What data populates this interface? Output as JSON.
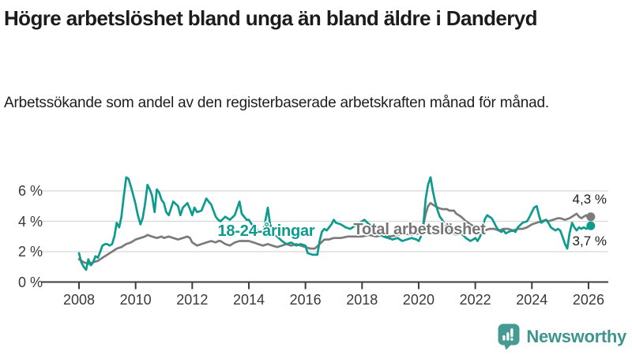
{
  "header": {
    "title": "Högre arbetslöshet bland unga än bland äldre i Danderyd",
    "subtitle": "Arbetssökande som andel av den registerbaserade arbetskraften månad för månad."
  },
  "footer": {
    "brand": "Newsworthy"
  },
  "colors": {
    "youth_line": "#0d9b8e",
    "total_line": "#7b7b7b",
    "grid": "#d8d8d8",
    "axis": "#3c3c3c",
    "logo_teal": "#459b94",
    "logo_text": "#3f948e"
  },
  "chart_data": {
    "type": "line",
    "title": "Högre arbetslöshet bland unga än bland äldre i Danderyd",
    "xlabel": "",
    "ylabel": "",
    "grid": "horizontal",
    "xlim": [
      2006.7,
      2026.7
    ],
    "ylim": [
      0,
      7.2
    ],
    "x_ticks": {
      "values": [
        2008,
        2010,
        2012,
        2014,
        2016,
        2018,
        2020,
        2022,
        2024,
        2026
      ],
      "labels": [
        "2008",
        "2010",
        "2012",
        "2014",
        "2016",
        "2018",
        "2020",
        "2022",
        "2024",
        "2026"
      ]
    },
    "y_ticks": {
      "values": [
        6,
        4,
        2,
        0
      ],
      "labels": [
        "6 %",
        "4 %",
        "2 %",
        "0 %"
      ]
    },
    "series": [
      {
        "name": "18-24-åringar",
        "color": "#0d9b8e",
        "end_label": "3,7 %",
        "end_value": 3.7,
        "points": [
          [
            2008.0,
            1.9
          ],
          [
            2008.08,
            1.3
          ],
          [
            2008.17,
            1.0
          ],
          [
            2008.25,
            0.8
          ],
          [
            2008.33,
            1.5
          ],
          [
            2008.42,
            1.1
          ],
          [
            2008.5,
            1.3
          ],
          [
            2008.58,
            1.7
          ],
          [
            2008.67,
            1.6
          ],
          [
            2008.75,
            2.0
          ],
          [
            2008.83,
            2.4
          ],
          [
            2008.92,
            2.5
          ],
          [
            2009.0,
            2.5
          ],
          [
            2009.08,
            2.4
          ],
          [
            2009.17,
            2.5
          ],
          [
            2009.25,
            3.0
          ],
          [
            2009.33,
            3.9
          ],
          [
            2009.42,
            3.6
          ],
          [
            2009.5,
            4.3
          ],
          [
            2009.58,
            5.6
          ],
          [
            2009.67,
            6.9
          ],
          [
            2009.75,
            6.8
          ],
          [
            2009.83,
            6.3
          ],
          [
            2009.92,
            5.7
          ],
          [
            2010.0,
            5.1
          ],
          [
            2010.08,
            4.4
          ],
          [
            2010.17,
            3.8
          ],
          [
            2010.25,
            4.2
          ],
          [
            2010.33,
            5.1
          ],
          [
            2010.42,
            6.4
          ],
          [
            2010.5,
            6.1
          ],
          [
            2010.58,
            5.7
          ],
          [
            2010.67,
            4.6
          ],
          [
            2010.75,
            6.1
          ],
          [
            2010.83,
            5.9
          ],
          [
            2010.92,
            5.4
          ],
          [
            2011.0,
            5.2
          ],
          [
            2011.08,
            4.6
          ],
          [
            2011.17,
            4.4
          ],
          [
            2011.33,
            5.3
          ],
          [
            2011.5,
            5.0
          ],
          [
            2011.58,
            4.4
          ],
          [
            2011.67,
            4.9
          ],
          [
            2011.83,
            5.2
          ],
          [
            2011.92,
            4.8
          ],
          [
            2012.0,
            4.4
          ],
          [
            2012.08,
            4.9
          ],
          [
            2012.17,
            4.6
          ],
          [
            2012.33,
            4.7
          ],
          [
            2012.5,
            5.5
          ],
          [
            2012.58,
            5.3
          ],
          [
            2012.67,
            5.1
          ],
          [
            2012.83,
            4.3
          ],
          [
            2012.92,
            4.1
          ],
          [
            2013.0,
            4.0
          ],
          [
            2013.17,
            4.3
          ],
          [
            2013.33,
            4.1
          ],
          [
            2013.5,
            4.4
          ],
          [
            2013.67,
            5.3
          ],
          [
            2013.75,
            4.5
          ],
          [
            2013.92,
            4.1
          ],
          [
            2014.0,
            4.1
          ],
          [
            2014.17,
            3.6
          ],
          [
            2014.33,
            3.4
          ],
          [
            2014.5,
            3.2
          ],
          [
            2014.67,
            4.9
          ],
          [
            2014.75,
            3.8
          ],
          [
            2014.92,
            3.1
          ],
          [
            2015.0,
            3.0
          ],
          [
            2015.17,
            2.7
          ],
          [
            2015.33,
            2.5
          ],
          [
            2015.5,
            2.6
          ],
          [
            2015.67,
            2.4
          ],
          [
            2015.83,
            2.5
          ],
          [
            2016.0,
            2.4
          ],
          [
            2016.08,
            1.9
          ],
          [
            2016.25,
            1.8
          ],
          [
            2016.42,
            1.8
          ],
          [
            2016.5,
            2.7
          ],
          [
            2016.58,
            3.3
          ],
          [
            2016.67,
            3.5
          ],
          [
            2016.75,
            3.4
          ],
          [
            2016.92,
            3.8
          ],
          [
            2017.0,
            4.1
          ],
          [
            2017.08,
            3.9
          ],
          [
            2017.25,
            3.8
          ],
          [
            2017.42,
            3.6
          ],
          [
            2017.58,
            3.5
          ],
          [
            2017.75,
            3.7
          ],
          [
            2017.92,
            3.9
          ],
          [
            2018.08,
            4.1
          ],
          [
            2018.25,
            3.8
          ],
          [
            2018.42,
            3.5
          ],
          [
            2018.58,
            3.2
          ],
          [
            2018.75,
            3.0
          ],
          [
            2018.92,
            2.9
          ],
          [
            2019.08,
            2.8
          ],
          [
            2019.25,
            2.9
          ],
          [
            2019.42,
            2.7
          ],
          [
            2019.58,
            2.8
          ],
          [
            2019.75,
            2.9
          ],
          [
            2019.92,
            2.8
          ],
          [
            2020.0,
            2.7
          ],
          [
            2020.08,
            3.0
          ],
          [
            2020.17,
            3.9
          ],
          [
            2020.25,
            5.5
          ],
          [
            2020.33,
            6.4
          ],
          [
            2020.42,
            6.9
          ],
          [
            2020.5,
            6.0
          ],
          [
            2020.58,
            5.3
          ],
          [
            2020.67,
            4.7
          ],
          [
            2020.75,
            4.3
          ],
          [
            2020.83,
            4.1
          ],
          [
            2020.92,
            3.8
          ],
          [
            2021.0,
            3.5
          ],
          [
            2021.17,
            3.3
          ],
          [
            2021.33,
            3.1
          ],
          [
            2021.5,
            3.2
          ],
          [
            2021.67,
            2.9
          ],
          [
            2021.83,
            2.7
          ],
          [
            2021.92,
            2.8
          ],
          [
            2022.0,
            2.9
          ],
          [
            2022.08,
            2.7
          ],
          [
            2022.17,
            3.0
          ],
          [
            2022.25,
            3.4
          ],
          [
            2022.33,
            4.1
          ],
          [
            2022.42,
            4.4
          ],
          [
            2022.5,
            4.3
          ],
          [
            2022.58,
            4.2
          ],
          [
            2022.67,
            3.9
          ],
          [
            2022.75,
            3.6
          ],
          [
            2022.83,
            3.4
          ],
          [
            2022.92,
            3.3
          ],
          [
            2023.0,
            3.4
          ],
          [
            2023.08,
            3.2
          ],
          [
            2023.17,
            3.3
          ],
          [
            2023.33,
            3.4
          ],
          [
            2023.42,
            3.3
          ],
          [
            2023.5,
            3.6
          ],
          [
            2023.67,
            3.9
          ],
          [
            2023.83,
            4.0
          ],
          [
            2023.92,
            4.3
          ],
          [
            2024.0,
            4.6
          ],
          [
            2024.08,
            4.9
          ],
          [
            2024.17,
            5.0
          ],
          [
            2024.25,
            4.4
          ],
          [
            2024.33,
            3.9
          ],
          [
            2024.42,
            4.0
          ],
          [
            2024.5,
            4.1
          ],
          [
            2024.58,
            3.9
          ],
          [
            2024.67,
            3.6
          ],
          [
            2024.83,
            3.4
          ],
          [
            2024.92,
            3.5
          ],
          [
            2025.0,
            3.4
          ],
          [
            2025.08,
            3.0
          ],
          [
            2025.17,
            2.5
          ],
          [
            2025.25,
            2.2
          ],
          [
            2025.33,
            3.2
          ],
          [
            2025.42,
            3.9
          ],
          [
            2025.5,
            3.6
          ],
          [
            2025.58,
            3.4
          ],
          [
            2025.67,
            3.6
          ],
          [
            2025.75,
            3.5
          ],
          [
            2025.83,
            3.6
          ],
          [
            2025.92,
            3.5
          ],
          [
            2026.0,
            3.6
          ],
          [
            2026.08,
            3.7
          ]
        ]
      },
      {
        "name": "Total arbetslöshet",
        "color": "#7b7b7b",
        "end_label": "4,3 %",
        "end_value": 4.3,
        "points": [
          [
            2008.0,
            1.5
          ],
          [
            2008.17,
            1.3
          ],
          [
            2008.33,
            1.2
          ],
          [
            2008.5,
            1.3
          ],
          [
            2008.67,
            1.4
          ],
          [
            2008.83,
            1.6
          ],
          [
            2009.0,
            1.8
          ],
          [
            2009.17,
            2.0
          ],
          [
            2009.33,
            2.2
          ],
          [
            2009.5,
            2.3
          ],
          [
            2009.67,
            2.5
          ],
          [
            2009.83,
            2.6
          ],
          [
            2010.0,
            2.8
          ],
          [
            2010.17,
            2.9
          ],
          [
            2010.33,
            3.0
          ],
          [
            2010.42,
            3.1
          ],
          [
            2010.58,
            3.0
          ],
          [
            2010.75,
            2.9
          ],
          [
            2010.92,
            3.0
          ],
          [
            2011.0,
            2.9
          ],
          [
            2011.17,
            3.0
          ],
          [
            2011.33,
            2.9
          ],
          [
            2011.5,
            2.8
          ],
          [
            2011.67,
            2.9
          ],
          [
            2011.83,
            3.0
          ],
          [
            2011.92,
            2.9
          ],
          [
            2012.0,
            2.6
          ],
          [
            2012.17,
            2.4
          ],
          [
            2012.33,
            2.5
          ],
          [
            2012.5,
            2.6
          ],
          [
            2012.67,
            2.7
          ],
          [
            2012.83,
            2.6
          ],
          [
            2012.92,
            2.7
          ],
          [
            2013.0,
            2.7
          ],
          [
            2013.17,
            2.5
          ],
          [
            2013.33,
            2.4
          ],
          [
            2013.5,
            2.6
          ],
          [
            2013.67,
            2.7
          ],
          [
            2013.83,
            2.7
          ],
          [
            2014.0,
            2.7
          ],
          [
            2014.17,
            2.6
          ],
          [
            2014.33,
            2.5
          ],
          [
            2014.5,
            2.4
          ],
          [
            2014.67,
            2.5
          ],
          [
            2014.83,
            2.4
          ],
          [
            2015.0,
            2.3
          ],
          [
            2015.17,
            2.4
          ],
          [
            2015.33,
            2.5
          ],
          [
            2015.5,
            2.4
          ],
          [
            2015.67,
            2.5
          ],
          [
            2015.83,
            2.4
          ],
          [
            2016.0,
            2.3
          ],
          [
            2016.17,
            2.2
          ],
          [
            2016.33,
            2.2
          ],
          [
            2016.5,
            2.5
          ],
          [
            2016.67,
            2.8
          ],
          [
            2016.83,
            2.8
          ],
          [
            2017.0,
            2.9
          ],
          [
            2017.25,
            2.9
          ],
          [
            2017.5,
            3.0
          ],
          [
            2017.75,
            3.0
          ],
          [
            2018.0,
            3.0
          ],
          [
            2018.25,
            3.1
          ],
          [
            2018.5,
            3.0
          ],
          [
            2018.75,
            3.1
          ],
          [
            2019.0,
            3.0
          ],
          [
            2019.25,
            3.1
          ],
          [
            2019.5,
            3.2
          ],
          [
            2019.75,
            3.1
          ],
          [
            2020.0,
            3.2
          ],
          [
            2020.08,
            3.3
          ],
          [
            2020.17,
            3.8
          ],
          [
            2020.25,
            4.5
          ],
          [
            2020.33,
            5.0
          ],
          [
            2020.42,
            5.2
          ],
          [
            2020.5,
            5.1
          ],
          [
            2020.58,
            5.0
          ],
          [
            2020.67,
            4.9
          ],
          [
            2020.83,
            4.8
          ],
          [
            2021.0,
            4.8
          ],
          [
            2021.08,
            4.7
          ],
          [
            2021.25,
            4.7
          ],
          [
            2021.33,
            4.5
          ],
          [
            2021.5,
            4.3
          ],
          [
            2021.67,
            4.0
          ],
          [
            2021.83,
            3.8
          ],
          [
            2021.92,
            3.7
          ],
          [
            2022.0,
            3.6
          ],
          [
            2022.17,
            3.5
          ],
          [
            2022.33,
            3.4
          ],
          [
            2022.5,
            3.5
          ],
          [
            2022.67,
            3.5
          ],
          [
            2022.83,
            3.4
          ],
          [
            2023.0,
            3.5
          ],
          [
            2023.17,
            3.5
          ],
          [
            2023.33,
            3.4
          ],
          [
            2023.5,
            3.5
          ],
          [
            2023.67,
            3.5
          ],
          [
            2023.83,
            3.6
          ],
          [
            2024.0,
            3.8
          ],
          [
            2024.17,
            3.9
          ],
          [
            2024.33,
            4.0
          ],
          [
            2024.5,
            4.1
          ],
          [
            2024.58,
            4.0
          ],
          [
            2024.75,
            4.1
          ],
          [
            2024.92,
            4.2
          ],
          [
            2025.0,
            4.2
          ],
          [
            2025.17,
            4.1
          ],
          [
            2025.33,
            4.2
          ],
          [
            2025.5,
            4.4
          ],
          [
            2025.58,
            4.5
          ],
          [
            2025.67,
            4.3
          ],
          [
            2025.75,
            4.2
          ],
          [
            2025.83,
            4.3
          ],
          [
            2025.92,
            4.4
          ],
          [
            2026.0,
            4.2
          ],
          [
            2026.08,
            4.3
          ]
        ]
      }
    ]
  }
}
